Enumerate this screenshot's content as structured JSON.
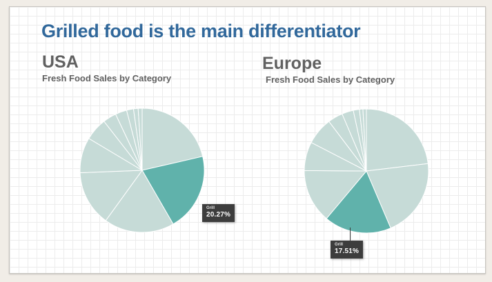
{
  "title": {
    "text": "Grilled food is the main differentiator"
  },
  "colors": {
    "title": "#31689b",
    "heading": "#616161",
    "highlight_slice": "#60b2ab",
    "slice": "#c6dbd7",
    "slice_border": "#ffffff",
    "tooltip_bg": "#3d3d3d",
    "grid_color": "#ececec",
    "canvas_bg": "#f1ede7",
    "panel_bg": "#ffffff"
  },
  "chart_data": [
    {
      "type": "pie",
      "title": "USA",
      "subtitle": "Fresh Food Sales by Category",
      "start_angle_deg": 0,
      "direction": "clockwise",
      "legend": "off",
      "slices": [
        {
          "label": "",
          "value": 21.4
        },
        {
          "label": "Grill",
          "value": 20.27,
          "highlighted": true
        },
        {
          "label": "",
          "value": 18.3
        },
        {
          "label": "",
          "value": 14.4
        },
        {
          "label": "",
          "value": 9.2
        },
        {
          "label": "",
          "value": 5.9
        },
        {
          "label": "",
          "value": 3.5
        },
        {
          "label": "",
          "value": 3.0
        },
        {
          "label": "",
          "value": 1.8
        },
        {
          "label": "",
          "value": 1.2
        },
        {
          "label": "",
          "value": 1.03
        }
      ],
      "tooltip": {
        "label": "Grill",
        "value": "20.27%"
      }
    },
    {
      "type": "pie",
      "title": "Europe",
      "subtitle": "Fresh Food Sales by Category",
      "start_angle_deg": 0,
      "direction": "clockwise",
      "legend": "off",
      "slices": [
        {
          "label": "",
          "value": 23.1
        },
        {
          "label": "",
          "value": 20.5
        },
        {
          "label": "Grill",
          "value": 17.51,
          "highlighted": true
        },
        {
          "label": "",
          "value": 14.0
        },
        {
          "label": "",
          "value": 7.49
        },
        {
          "label": "",
          "value": 7.1
        },
        {
          "label": "",
          "value": 3.9
        },
        {
          "label": "",
          "value": 3.0
        },
        {
          "label": "",
          "value": 1.6
        },
        {
          "label": "",
          "value": 0.9
        },
        {
          "label": "",
          "value": 0.9
        }
      ],
      "tooltip": {
        "label": "Grill",
        "value": "17.51%"
      }
    }
  ]
}
